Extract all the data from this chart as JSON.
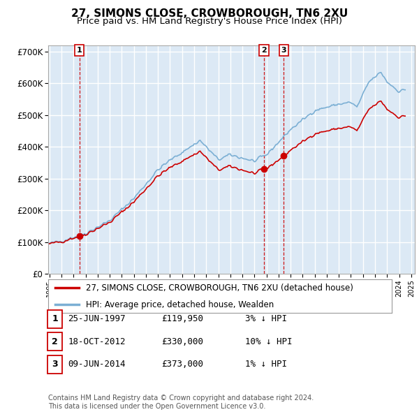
{
  "title": "27, SIMONS CLOSE, CROWBOROUGH, TN6 2XU",
  "subtitle": "Price paid vs. HM Land Registry's House Price Index (HPI)",
  "plot_bg_color": "#dce9f5",
  "y_ticks": [
    0,
    100000,
    200000,
    300000,
    400000,
    500000,
    600000,
    700000
  ],
  "y_tick_labels": [
    "£0",
    "£100K",
    "£200K",
    "£300K",
    "£400K",
    "£500K",
    "£600K",
    "£700K"
  ],
  "sale_dates": [
    1997.48,
    2012.79,
    2014.44
  ],
  "sale_prices": [
    119950,
    330000,
    373000
  ],
  "sale_labels": [
    "1",
    "2",
    "3"
  ],
  "hpi_years": [
    1995.0,
    1995.083,
    1995.167,
    1995.25,
    1995.333,
    1995.417,
    1995.5,
    1995.583,
    1995.667,
    1995.75,
    1995.833,
    1995.917,
    1996.0,
    1996.083,
    1996.167,
    1996.25,
    1996.333,
    1996.417,
    1996.5,
    1996.583,
    1996.667,
    1996.75,
    1996.833,
    1996.917,
    1997.0,
    1997.083,
    1997.167,
    1997.25,
    1997.333,
    1997.417,
    1997.5,
    1997.583,
    1997.667,
    1997.75,
    1997.833,
    1997.917,
    1998.0,
    1998.083,
    1998.167,
    1998.25,
    1998.333,
    1998.417,
    1998.5,
    1998.583,
    1998.667,
    1998.75,
    1998.833,
    1998.917,
    1999.0,
    1999.083,
    1999.167,
    1999.25,
    1999.333,
    1999.417,
    1999.5,
    1999.583,
    1999.667,
    1999.75,
    1999.833,
    1999.917,
    2000.0,
    2000.083,
    2000.167,
    2000.25,
    2000.333,
    2000.417,
    2000.5,
    2000.583,
    2000.667,
    2000.75,
    2000.833,
    2000.917,
    2001.0,
    2001.083,
    2001.167,
    2001.25,
    2001.333,
    2001.417,
    2001.5,
    2001.583,
    2001.667,
    2001.75,
    2001.833,
    2001.917,
    2002.0,
    2002.083,
    2002.167,
    2002.25,
    2002.333,
    2002.417,
    2002.5,
    2002.583,
    2002.667,
    2002.75,
    2002.833,
    2002.917,
    2003.0,
    2003.083,
    2003.167,
    2003.25,
    2003.333,
    2003.417,
    2003.5,
    2003.583,
    2003.667,
    2003.75,
    2003.833,
    2003.917,
    2004.0,
    2004.083,
    2004.167,
    2004.25,
    2004.333,
    2004.417,
    2004.5,
    2004.583,
    2004.667,
    2004.75,
    2004.833,
    2004.917,
    2005.0,
    2005.083,
    2005.167,
    2005.25,
    2005.333,
    2005.417,
    2005.5,
    2005.583,
    2005.667,
    2005.75,
    2005.833,
    2005.917,
    2006.0,
    2006.083,
    2006.167,
    2006.25,
    2006.333,
    2006.417,
    2006.5,
    2006.583,
    2006.667,
    2006.75,
    2006.833,
    2006.917,
    2007.0,
    2007.083,
    2007.167,
    2007.25,
    2007.333,
    2007.417,
    2007.5,
    2007.583,
    2007.667,
    2007.75,
    2007.833,
    2007.917,
    2008.0,
    2008.083,
    2008.167,
    2008.25,
    2008.333,
    2008.417,
    2008.5,
    2008.583,
    2008.667,
    2008.75,
    2008.833,
    2008.917,
    2009.0,
    2009.083,
    2009.167,
    2009.25,
    2009.333,
    2009.417,
    2009.5,
    2009.583,
    2009.667,
    2009.75,
    2009.833,
    2009.917,
    2010.0,
    2010.083,
    2010.167,
    2010.25,
    2010.333,
    2010.417,
    2010.5,
    2010.583,
    2010.667,
    2010.75,
    2010.833,
    2010.917,
    2011.0,
    2011.083,
    2011.167,
    2011.25,
    2011.333,
    2011.417,
    2011.5,
    2011.583,
    2011.667,
    2011.75,
    2011.833,
    2011.917,
    2012.0,
    2012.083,
    2012.167,
    2012.25,
    2012.333,
    2012.417,
    2012.5,
    2012.583,
    2012.667,
    2012.75,
    2012.833,
    2012.917,
    2013.0,
    2013.083,
    2013.167,
    2013.25,
    2013.333,
    2013.417,
    2013.5,
    2013.583,
    2013.667,
    2013.75,
    2013.833,
    2013.917,
    2014.0,
    2014.083,
    2014.167,
    2014.25,
    2014.333,
    2014.417,
    2014.5,
    2014.583,
    2014.667,
    2014.75,
    2014.833,
    2014.917,
    2015.0,
    2015.083,
    2015.167,
    2015.25,
    2015.333,
    2015.417,
    2015.5,
    2015.583,
    2015.667,
    2015.75,
    2015.833,
    2015.917,
    2016.0,
    2016.083,
    2016.167,
    2016.25,
    2016.333,
    2016.417,
    2016.5,
    2016.583,
    2016.667,
    2016.75,
    2016.833,
    2016.917,
    2017.0,
    2017.083,
    2017.167,
    2017.25,
    2017.333,
    2017.417,
    2017.5,
    2017.583,
    2017.667,
    2017.75,
    2017.833,
    2017.917,
    2018.0,
    2018.083,
    2018.167,
    2018.25,
    2018.333,
    2018.417,
    2018.5,
    2018.583,
    2018.667,
    2018.75,
    2018.833,
    2018.917,
    2019.0,
    2019.083,
    2019.167,
    2019.25,
    2019.333,
    2019.417,
    2019.5,
    2019.583,
    2019.667,
    2019.75,
    2019.833,
    2019.917,
    2020.0,
    2020.083,
    2020.167,
    2020.25,
    2020.333,
    2020.417,
    2020.5,
    2020.583,
    2020.667,
    2020.75,
    2020.833,
    2020.917,
    2021.0,
    2021.083,
    2021.167,
    2021.25,
    2021.333,
    2021.417,
    2021.5,
    2021.583,
    2021.667,
    2021.75,
    2021.833,
    2021.917,
    2022.0,
    2022.083,
    2022.167,
    2022.25,
    2022.333,
    2022.417,
    2022.5,
    2022.583,
    2022.667,
    2022.75,
    2022.833,
    2022.917,
    2023.0,
    2023.083,
    2023.167,
    2023.25,
    2023.333,
    2023.417,
    2023.5,
    2023.583,
    2023.667,
    2023.75,
    2023.833,
    2023.917,
    2024.0,
    2024.083,
    2024.167,
    2024.25,
    2024.333,
    2024.417,
    2024.5
  ],
  "legend_label_red": "27, SIMONS CLOSE, CROWBOROUGH, TN6 2XU (detached house)",
  "legend_label_blue": "HPI: Average price, detached house, Wealden",
  "table_entries": [
    {
      "num": "1",
      "date": "25-JUN-1997",
      "price": "£119,950",
      "hpi": "3% ↓ HPI"
    },
    {
      "num": "2",
      "date": "18-OCT-2012",
      "price": "£330,000",
      "hpi": "10% ↓ HPI"
    },
    {
      "num": "3",
      "date": "09-JUN-2014",
      "price": "£373,000",
      "hpi": "1% ↓ HPI"
    }
  ],
  "footer": "Contains HM Land Registry data © Crown copyright and database right 2024.\nThis data is licensed under the Open Government Licence v3.0.",
  "line_color_red": "#cc0000",
  "line_color_blue": "#7bafd4",
  "dot_color": "#cc0000",
  "vline_color": "#cc0000",
  "grid_color": "#ffffff"
}
